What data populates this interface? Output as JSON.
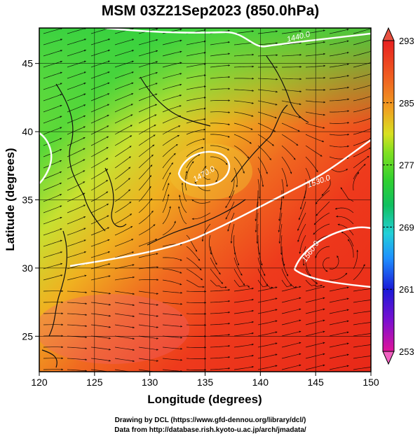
{
  "title": "MSM 03Z21Sep2023 (850.0hPa)",
  "axes": {
    "xlabel": "Longitude (degrees)",
    "ylabel": "Latitude  (degrees)",
    "xticks": [
      "120",
      "125",
      "130",
      "135",
      "140",
      "145",
      "150"
    ],
    "yticks": [
      "25",
      "30",
      "35",
      "40",
      "45"
    ],
    "xlim": [
      120,
      150
    ],
    "ylim": [
      22.4,
      47.6
    ]
  },
  "colorbar": {
    "labels": [
      "293",
      "285",
      "277",
      "269",
      "261",
      "253"
    ],
    "range": [
      253,
      293
    ],
    "colors": [
      "#e0149a",
      "#7a0fd0",
      "#1a1ad8",
      "#1e90ff",
      "#22d0d8",
      "#10c060",
      "#30d030",
      "#80e020",
      "#d8e020",
      "#f0a020",
      "#f06020",
      "#e82020"
    ]
  },
  "contours": {
    "color": "#ffffff",
    "labels": [
      "1440.0",
      "1470.0",
      "1530.0",
      "1560.0"
    ]
  },
  "credits": {
    "line1": "Drawing by DCL (https://www.gfd-dennou.org/library/dcl/)",
    "line2": "Data from http://database.rish.kyoto-u.ac.jp/arch/jmadata/"
  }
}
